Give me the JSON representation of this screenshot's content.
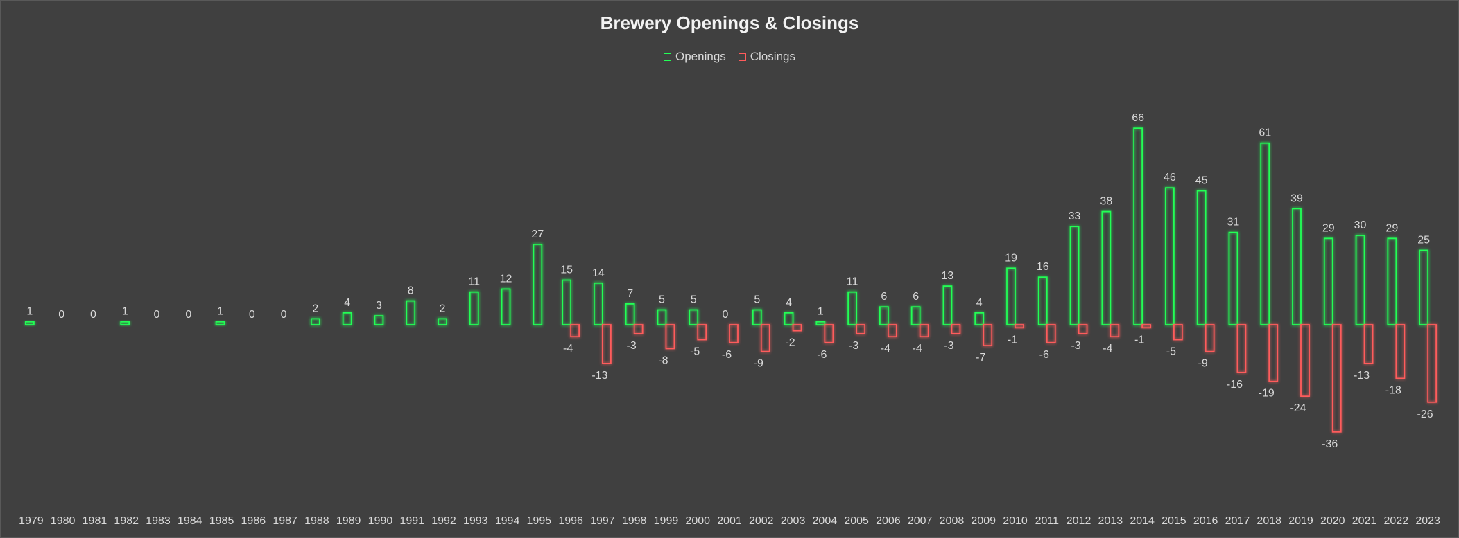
{
  "chart_data": {
    "type": "bar",
    "title": "Brewery Openings & Closings",
    "legend_position": "top",
    "grid": false,
    "ylim": [
      -40,
      70
    ],
    "categories": [
      "1979",
      "1980",
      "1981",
      "1982",
      "1983",
      "1984",
      "1985",
      "1986",
      "1987",
      "1988",
      "1989",
      "1990",
      "1991",
      "1992",
      "1993",
      "1994",
      "1995",
      "1996",
      "1997",
      "1998",
      "1999",
      "2000",
      "2001",
      "2002",
      "2003",
      "2004",
      "2005",
      "2006",
      "2007",
      "2008",
      "2009",
      "2010",
      "2011",
      "2012",
      "2013",
      "2014",
      "2015",
      "2016",
      "2017",
      "2018",
      "2019",
      "2020",
      "2021",
      "2022",
      "2023"
    ],
    "series": [
      {
        "name": "Openings",
        "color": "#22ff55",
        "values": [
          1,
          0,
          0,
          1,
          0,
          0,
          1,
          0,
          0,
          2,
          4,
          3,
          8,
          2,
          11,
          12,
          27,
          15,
          14,
          7,
          5,
          5,
          0,
          5,
          4,
          1,
          11,
          6,
          6,
          13,
          4,
          19,
          16,
          33,
          38,
          66,
          46,
          45,
          31,
          61,
          39,
          29,
          30,
          29,
          25
        ]
      },
      {
        "name": "Closings",
        "color": "#ff5b5b",
        "values": [
          null,
          null,
          null,
          null,
          null,
          null,
          null,
          null,
          null,
          null,
          null,
          null,
          null,
          null,
          null,
          null,
          null,
          -4,
          -13,
          -3,
          -8,
          -5,
          -6,
          -9,
          -2,
          -6,
          -3,
          -4,
          -4,
          -3,
          -7,
          -1,
          -6,
          -3,
          -4,
          -1,
          -5,
          -9,
          -16,
          -19,
          -24,
          -36,
          -13,
          -18,
          -26
        ]
      }
    ]
  }
}
